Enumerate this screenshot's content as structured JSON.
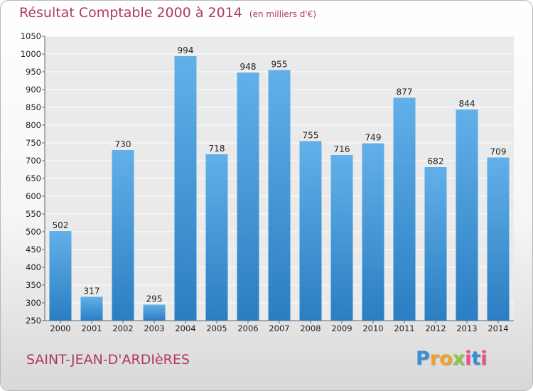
{
  "chart_data": {
    "type": "bar",
    "title": "Résultat Comptable 2000 à 2014",
    "unit_note": "(en milliers d'€)",
    "categories": [
      "2000",
      "2001",
      "2002",
      "2003",
      "2004",
      "2005",
      "2006",
      "2007",
      "2008",
      "2009",
      "2010",
      "2011",
      "2012",
      "2013",
      "2014"
    ],
    "values": [
      502,
      317,
      730,
      295,
      994,
      718,
      948,
      955,
      755,
      716,
      749,
      877,
      682,
      844,
      709
    ],
    "ylim": [
      250,
      1050
    ],
    "yticks": [
      250,
      300,
      350,
      400,
      450,
      500,
      550,
      600,
      650,
      700,
      750,
      800,
      850,
      900,
      950,
      1000,
      1050
    ],
    "grid": true,
    "xlabel": "",
    "ylabel": "",
    "bar_color_light": "#62b0ea",
    "bar_color_dark": "#2b7ec2",
    "title_color": "#b03a5b"
  },
  "footer": {
    "commune": "SAINT-JEAN-D'ARDIèRES",
    "brand_letters": [
      {
        "ch": "P",
        "color": "#3a8fd6"
      },
      {
        "ch": "r",
        "color": "#f2a12a"
      },
      {
        "ch": "o",
        "color": "#f2a12a"
      },
      {
        "ch": "x",
        "color": "#8cc63f"
      },
      {
        "ch": "i",
        "color": "#e94f8a"
      },
      {
        "ch": "t",
        "color": "#3a8fd6"
      },
      {
        "ch": "i",
        "color": "#e94f8a"
      }
    ]
  }
}
